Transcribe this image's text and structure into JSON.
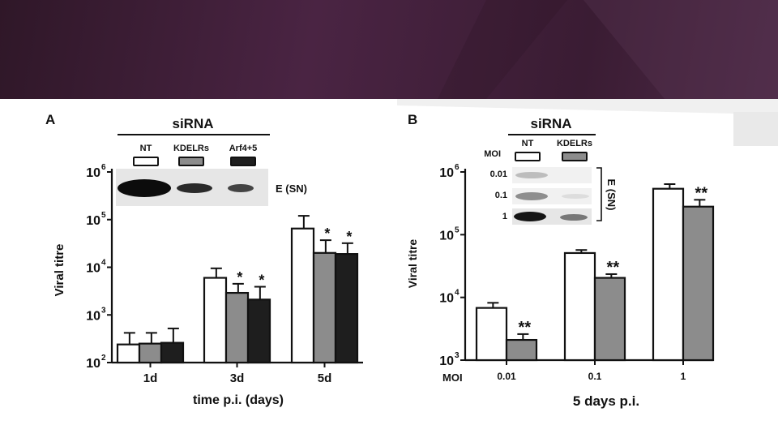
{
  "chart_data": [
    {
      "type": "bar",
      "panel_label": "A",
      "categories": [
        "1d",
        "3d",
        "5d"
      ],
      "series": [
        {
          "name": "NT",
          "values": [
            240,
            6000,
            65000
          ],
          "errors": [
            420,
            9500,
            120000
          ],
          "stars": [
            "",
            "",
            ""
          ]
        },
        {
          "name": "KDELRs",
          "values": [
            250,
            2900,
            20000
          ],
          "errors": [
            420,
            4500,
            37000
          ],
          "stars": [
            "",
            "*",
            "*"
          ]
        },
        {
          "name": "Arf4+5",
          "values": [
            260,
            2100,
            19000
          ],
          "errors": [
            520,
            3900,
            32000
          ],
          "stars": [
            "",
            "*",
            "*"
          ]
        }
      ],
      "xlabel": "time p.i. (days)",
      "ylabel": "Viral titre",
      "yscale": "log",
      "ylim": [
        100,
        1000000
      ],
      "y_ticks": [
        "10",
        "10",
        "10",
        "10",
        "10"
      ],
      "y_tick_exponents": [
        "2",
        "3",
        "4",
        "5",
        "6"
      ],
      "legend_title": "siRNA",
      "blot_label": "E (SN)",
      "colors": [
        "#ffffff",
        "#8c8c8c",
        "#1e1e1e"
      ]
    },
    {
      "type": "bar",
      "panel_label": "B",
      "x_prefix": "MOI",
      "categories": [
        "0.01",
        "0.1",
        "1"
      ],
      "series": [
        {
          "name": "NT",
          "values": [
            6800,
            51000,
            540000
          ],
          "errors": [
            8200,
            57000,
            640000
          ],
          "stars": [
            "",
            "",
            ""
          ]
        },
        {
          "name": "KDELRs",
          "values": [
            2100,
            20500,
            280000
          ],
          "errors": [
            2600,
            23500,
            360000
          ],
          "stars": [
            "**",
            "**",
            "**"
          ]
        }
      ],
      "xlabel": "5 days p.i.",
      "ylabel": "Viral titre",
      "yscale": "log",
      "ylim": [
        1000,
        1000000
      ],
      "y_ticks": [
        "10",
        "10",
        "10",
        "10"
      ],
      "y_tick_exponents": [
        "3",
        "4",
        "5",
        "6"
      ],
      "legend_title": "siRNA",
      "blot_row_labels": [
        "MOI",
        "0.01",
        "0.1",
        "1"
      ],
      "blot_label": "E (SN)",
      "colors": [
        "#ffffff",
        "#8c8c8c"
      ]
    }
  ]
}
